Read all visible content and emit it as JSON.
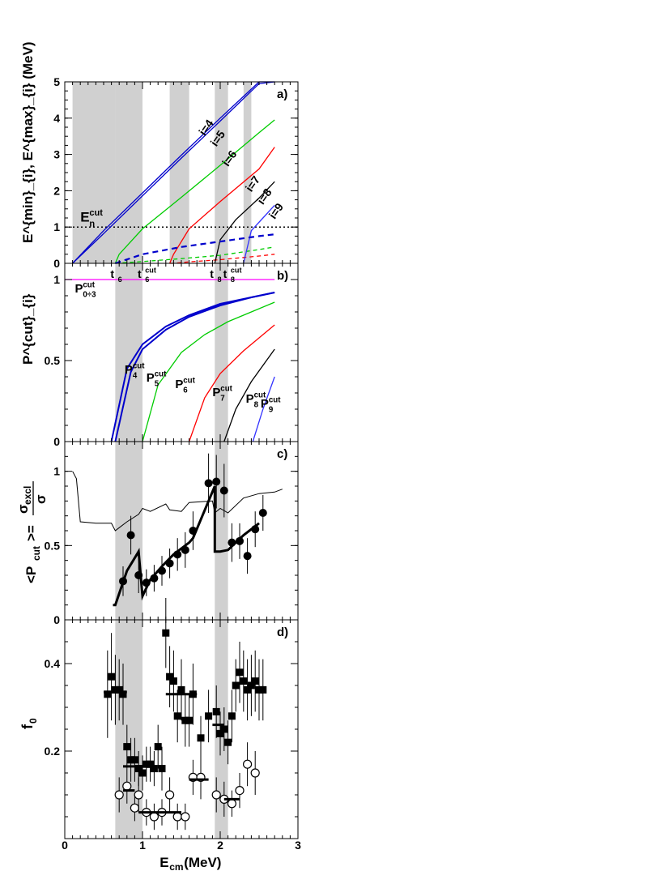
{
  "x_axis": {
    "label_main": "E",
    "label_sub": "cm",
    "label_unit": " (MeV)",
    "ticks": [
      "0",
      "1",
      "2",
      "3"
    ],
    "xlim": [
      0,
      3
    ]
  },
  "panel_labels": [
    "a)",
    "b)",
    "c)",
    "d)"
  ],
  "panel_a": {
    "ylabel": "E^{min}_{i}, E^{max}_{i} (MeV)",
    "ylim": [
      0,
      5
    ],
    "yticks": [
      "0",
      "1",
      "2",
      "3",
      "4",
      "5"
    ],
    "ecut_label": "E^{cut}_{n}",
    "ecut_value": 1,
    "curve_labels": [
      "i=4",
      "i=5",
      "i=6",
      "i=7",
      "i=8",
      "i=9"
    ],
    "threshold_labels": [
      {
        "base": "t",
        "sub": "6",
        "sup": ""
      },
      {
        "base": "t",
        "sub": "6",
        "sup": "cut"
      },
      {
        "base": "t",
        "sub": "8",
        "sup": ""
      },
      {
        "base": "t",
        "sub": "8",
        "sup": "cut"
      }
    ]
  },
  "panel_b": {
    "ylabel": "P^{cut}_{i}",
    "ylim": [
      0,
      1.1
    ],
    "yticks": [
      "0",
      "0.5",
      "1"
    ],
    "const_label": {
      "base": "P",
      "sub": "0÷3",
      "sup": "cut"
    },
    "curve_labels": [
      {
        "base": "P",
        "sub": "4",
        "sup": "cut"
      },
      {
        "base": "P",
        "sub": "5",
        "sup": "cut"
      },
      {
        "base": "P",
        "sub": "6",
        "sup": "cut"
      },
      {
        "base": "P",
        "sub": "7",
        "sup": "cut"
      },
      {
        "base": "P",
        "sub": "8",
        "sup": "cut"
      },
      {
        "base": "P",
        "sub": "9",
        "sup": "cut"
      }
    ]
  },
  "panel_c": {
    "ylabel_left": "<P",
    "ylabel_sub": "cut",
    "ylabel_mid": ">=",
    "frac_num": "σ",
    "frac_num_sub": "excl",
    "frac_den": "σ",
    "ylim": [
      0,
      1.2
    ],
    "yticks": [
      "0",
      "0.5",
      "1"
    ]
  },
  "panel_d": {
    "ylabel": "f",
    "ylabel_sub": "0",
    "ylim": [
      0,
      0.5
    ],
    "yticks": [
      "0.2",
      "0.4"
    ]
  },
  "colors": {
    "i4": "#0000cc",
    "i5": "#00cc00",
    "i6": "#ff0000",
    "i7": "#000000",
    "i8": "#000000",
    "i9": "#3333ff",
    "const": "#ff00ff",
    "shade": "#c8c8c8"
  },
  "chart_data": [
    {
      "type": "line",
      "panel": "a)",
      "xlim": [
        0,
        3
      ],
      "ylim": [
        0,
        5
      ],
      "shaded_x_ranges": [
        [
          0.1,
          0.65
        ],
        [
          0.65,
          1.0
        ],
        [
          1.35,
          1.6
        ],
        [
          1.93,
          2.1
        ],
        [
          2.3,
          2.4
        ]
      ],
      "hline": {
        "y": 1,
        "style": "dotted"
      },
      "series": [
        {
          "name": "i=4",
          "color": "#0000cc",
          "x": [
            0.1,
            0.5,
            1.0,
            1.5,
            2.0,
            2.5,
            2.7
          ],
          "y_min": [
            0.0,
            0.82,
            1.86,
            2.9,
            3.92,
            4.95,
            5.0
          ],
          "y_max": [
            0.0,
            0.9,
            1.94,
            2.98,
            4.0,
            5.0,
            5.0
          ]
        },
        {
          "name": "i=5",
          "color": "#00cc00",
          "x": [
            0.65,
            0.7,
            1.0,
            1.5,
            2.0,
            2.5,
            2.7
          ],
          "y_max": [
            0.0,
            0.25,
            0.95,
            1.82,
            2.7,
            3.6,
            3.95
          ],
          "y_min": [
            0.0,
            0.01,
            0.05,
            0.13,
            0.22,
            0.38,
            0.45
          ]
        },
        {
          "name": "i=6",
          "color": "#ff0000",
          "x": [
            1.35,
            1.4,
            1.6,
            2.0,
            2.5,
            2.7
          ],
          "y_max": [
            0.0,
            0.25,
            0.95,
            1.7,
            2.6,
            3.2
          ],
          "y_min": [
            0.0,
            0.0,
            0.04,
            0.1,
            0.2,
            0.25
          ]
        },
        {
          "name": "i=7",
          "color": "#000000",
          "x": [
            1.93,
            2.0,
            2.2,
            2.5,
            2.7
          ],
          "y_max": [
            0.0,
            0.65,
            1.2,
            1.8,
            2.25
          ]
        },
        {
          "name": "i=8",
          "color": "#3333ff",
          "x": [
            2.3,
            2.4,
            2.55,
            2.7
          ],
          "y_max": [
            0.0,
            0.9,
            1.25,
            1.6
          ]
        },
        {
          "name": "i=4 lower (dashed)",
          "color": "#0000cc",
          "x": [
            0.65,
            1.0,
            1.5,
            2.0,
            2.5,
            2.7
          ],
          "y": [
            0.0,
            0.25,
            0.45,
            0.6,
            0.75,
            0.8
          ]
        }
      ]
    },
    {
      "type": "line",
      "panel": "b)",
      "xlim": [
        0,
        3
      ],
      "ylim": [
        0,
        1.1
      ],
      "shaded_x_ranges": [
        [
          0.65,
          1.0
        ],
        [
          1.93,
          2.1
        ]
      ],
      "series": [
        {
          "name": "P0÷3 cut",
          "color": "#ff00ff",
          "x": [
            0,
            2.7
          ],
          "y": [
            1.0,
            1.0
          ]
        },
        {
          "name": "P4 cut",
          "color": "#0000cc",
          "x": [
            0.6,
            0.8,
            1.0,
            1.3,
            1.6,
            2.0,
            2.4,
            2.7
          ],
          "y": [
            0.0,
            0.45,
            0.6,
            0.71,
            0.78,
            0.85,
            0.89,
            0.92
          ]
        },
        {
          "name": "P5 cut",
          "color": "#0000cc",
          "x": [
            0.65,
            0.85,
            1.0,
            1.3,
            1.6,
            2.0,
            2.4,
            2.7
          ],
          "y": [
            0.0,
            0.43,
            0.57,
            0.69,
            0.77,
            0.84,
            0.89,
            0.92
          ]
        },
        {
          "name": "P6 cut",
          "color": "#00cc00",
          "x": [
            1.0,
            1.2,
            1.5,
            1.8,
            2.1,
            2.4,
            2.7
          ],
          "y": [
            0.0,
            0.35,
            0.55,
            0.66,
            0.74,
            0.8,
            0.86
          ]
        },
        {
          "name": "P7 cut",
          "color": "#ff0000",
          "x": [
            1.6,
            1.8,
            2.0,
            2.3,
            2.7
          ],
          "y": [
            0.0,
            0.27,
            0.42,
            0.56,
            0.72
          ]
        },
        {
          "name": "P8 cut",
          "color": "#000000",
          "x": [
            2.05,
            2.2,
            2.4,
            2.7
          ],
          "y": [
            0.0,
            0.2,
            0.37,
            0.57
          ]
        },
        {
          "name": "P9 cut",
          "color": "#3333ff",
          "x": [
            2.42,
            2.55,
            2.7
          ],
          "y": [
            0.0,
            0.2,
            0.4
          ]
        }
      ]
    },
    {
      "type": "scatter",
      "panel": "c)",
      "xlim": [
        0,
        3
      ],
      "ylim": [
        0,
        1.2
      ],
      "shaded_x_ranges": [
        [
          0.65,
          1.0
        ],
        [
          1.93,
          2.1
        ]
      ],
      "points": {
        "x": [
          0.75,
          0.85,
          0.95,
          1.05,
          1.15,
          1.25,
          1.35,
          1.45,
          1.55,
          1.65,
          1.85,
          1.95,
          2.05,
          2.15,
          2.25,
          2.35,
          2.45,
          2.55
        ],
        "y": [
          0.26,
          0.57,
          0.3,
          0.25,
          0.28,
          0.33,
          0.38,
          0.44,
          0.47,
          0.6,
          0.92,
          0.93,
          0.87,
          0.52,
          0.53,
          0.43,
          0.61,
          0.72
        ],
        "err": [
          0.1,
          0.13,
          0.12,
          0.09,
          0.09,
          0.1,
          0.1,
          0.11,
          0.12,
          0.13,
          0.2,
          0.18,
          0.18,
          0.13,
          0.12,
          0.12,
          0.12,
          0.12
        ]
      },
      "curves": [
        {
          "name": "thin model",
          "x": [
            0.1,
            0.15,
            0.2,
            0.4,
            0.6,
            0.65,
            0.7,
            0.8,
            0.95,
            1.0,
            1.1,
            1.3,
            1.35,
            1.5,
            1.6,
            1.9,
            1.93,
            2.0,
            2.1,
            2.3,
            2.5,
            2.7,
            2.8
          ],
          "y": [
            1.0,
            0.95,
            0.66,
            0.65,
            0.65,
            0.6,
            0.62,
            0.66,
            0.71,
            0.75,
            0.73,
            0.78,
            0.74,
            0.73,
            0.79,
            0.8,
            0.72,
            0.75,
            0.72,
            0.82,
            0.85,
            0.86,
            0.88
          ]
        },
        {
          "name": "thick model",
          "x": [
            0.62,
            0.65,
            0.8,
            0.95,
            1.0,
            1.1,
            1.25,
            1.4,
            1.6,
            1.65,
            1.93,
            1.93,
            2.0,
            2.1,
            2.3,
            2.5
          ],
          "y": [
            0.1,
            0.1,
            0.33,
            0.46,
            0.16,
            0.27,
            0.36,
            0.44,
            0.52,
            0.55,
            0.9,
            0.46,
            0.46,
            0.47,
            0.57,
            0.65
          ]
        }
      ]
    },
    {
      "type": "scatter",
      "panel": "d)",
      "xlim": [
        0,
        3
      ],
      "ylim": [
        0,
        0.5
      ],
      "shaded_x_ranges": [
        [
          0.65,
          1.0
        ],
        [
          1.93,
          2.1
        ]
      ],
      "series": [
        {
          "name": "filled squares",
          "marker": "square-filled",
          "x": [
            0.55,
            0.6,
            0.65,
            0.7,
            0.75,
            0.8,
            0.85,
            0.9,
            0.95,
            1.0,
            1.05,
            1.1,
            1.15,
            1.2,
            1.25,
            1.3,
            1.35,
            1.4,
            1.45,
            1.5,
            1.55,
            1.6,
            1.65,
            1.75,
            1.85,
            1.95,
            2.0,
            2.05,
            2.1,
            2.15,
            2.2,
            2.25,
            2.3,
            2.35,
            2.4,
            2.45,
            2.5,
            2.55
          ],
          "y": [
            0.33,
            0.37,
            0.34,
            0.34,
            0.33,
            0.21,
            0.18,
            0.18,
            0.16,
            0.15,
            0.17,
            0.17,
            0.16,
            0.21,
            0.16,
            0.47,
            0.37,
            0.36,
            0.28,
            0.34,
            0.27,
            0.27,
            0.33,
            0.23,
            0.28,
            0.29,
            0.24,
            0.25,
            0.22,
            0.28,
            0.35,
            0.38,
            0.36,
            0.34,
            0.35,
            0.36,
            0.34,
            0.34
          ],
          "err": [
            0.1,
            0.1,
            0.08,
            0.07,
            0.07,
            0.05,
            0.05,
            0.05,
            0.04,
            0.04,
            0.04,
            0.04,
            0.04,
            0.05,
            0.05,
            0.08,
            0.07,
            0.07,
            0.06,
            0.07,
            0.06,
            0.06,
            0.07,
            0.05,
            0.06,
            0.06,
            0.05,
            0.05,
            0.05,
            0.06,
            0.06,
            0.07,
            0.07,
            0.07,
            0.07,
            0.07,
            0.07,
            0.07
          ]
        },
        {
          "name": "open circles",
          "marker": "circle-open",
          "x": [
            0.7,
            0.8,
            0.9,
            0.95,
            1.05,
            1.15,
            1.25,
            1.35,
            1.45,
            1.55,
            1.65,
            1.75,
            1.95,
            2.05,
            2.15,
            2.25,
            2.35,
            2.45
          ],
          "y": [
            0.1,
            0.12,
            0.07,
            0.1,
            0.06,
            0.05,
            0.06,
            0.1,
            0.05,
            0.05,
            0.14,
            0.14,
            0.1,
            0.09,
            0.08,
            0.11,
            0.17,
            0.15
          ],
          "err": [
            0.04,
            0.04,
            0.03,
            0.04,
            0.03,
            0.03,
            0.03,
            0.04,
            0.03,
            0.03,
            0.04,
            0.05,
            0.04,
            0.04,
            0.03,
            0.04,
            0.05,
            0.05
          ]
        },
        {
          "name": "averages",
          "marker": "hbar",
          "segments": [
            [
              0.5,
              0.8,
              0.335
            ],
            [
              0.75,
              1.05,
              0.165
            ],
            [
              0.75,
              0.9,
              0.11
            ],
            [
              0.95,
              1.5,
              0.06
            ],
            [
              1.3,
              1.7,
              0.33
            ],
            [
              1.6,
              1.85,
              0.135
            ],
            [
              1.9,
              2.05,
              0.26
            ],
            [
              2.05,
              2.25,
              0.09
            ]
          ]
        }
      ]
    }
  ]
}
